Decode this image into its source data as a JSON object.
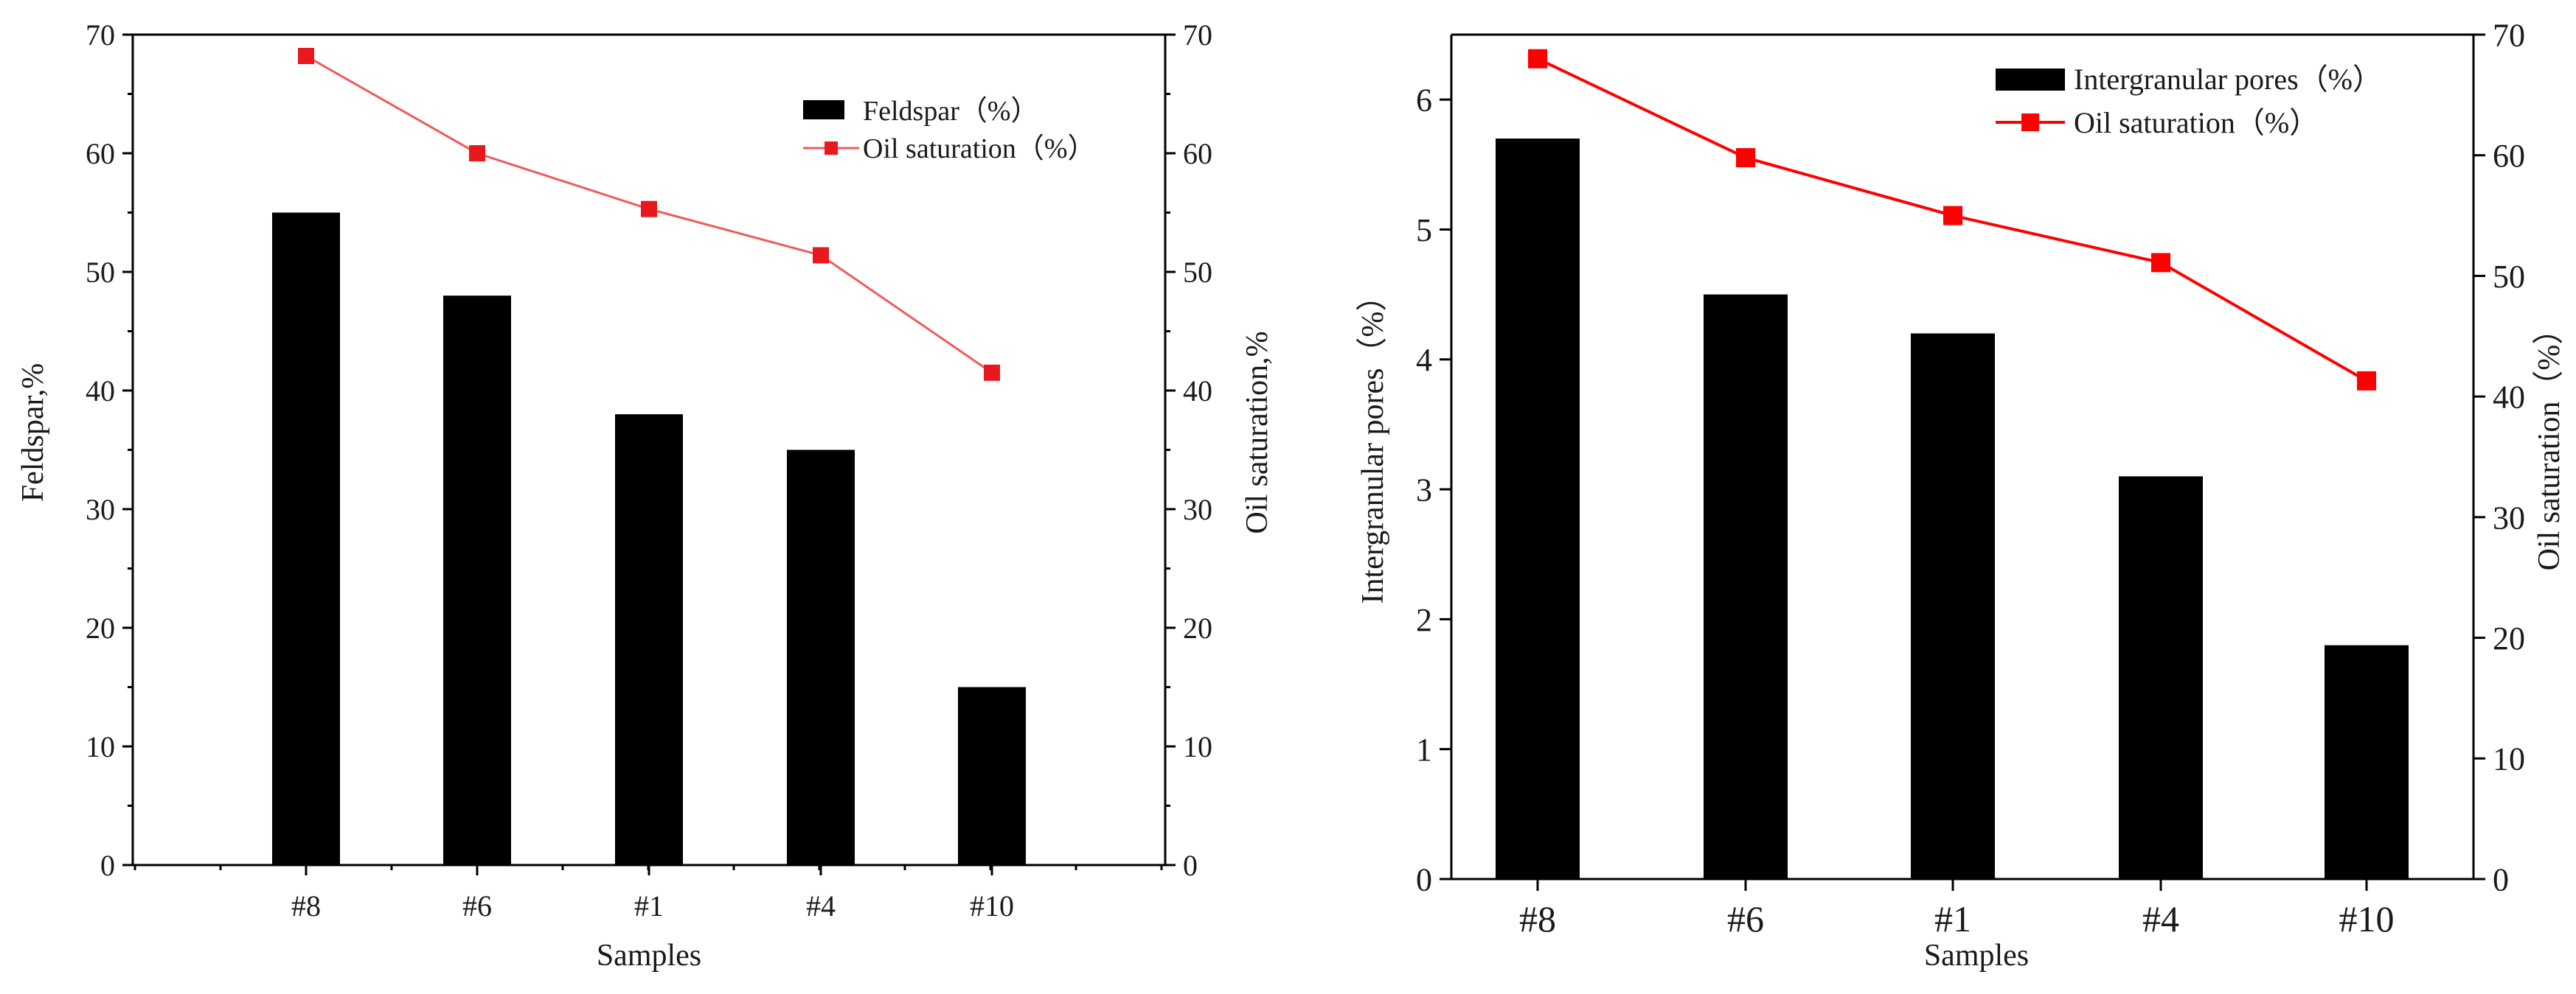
{
  "colors": {
    "bar": "#000000",
    "line_left": "#f05a5a",
    "marker_left": "#e8181c",
    "line_right": "#ff0000",
    "marker_right": "#ff0000",
    "axis": "#000000"
  },
  "chart_data": [
    {
      "type": "bar+line",
      "title": "",
      "xlabel": "Samples",
      "ylabel": "Feldspar,%",
      "y2label": "Oil saturation,%",
      "categories": [
        "#8",
        "#6",
        "#1",
        "#4",
        "#10"
      ],
      "ylim": [
        0,
        70
      ],
      "y2lim": [
        0,
        70
      ],
      "yticks": [
        0,
        10,
        20,
        30,
        40,
        50,
        60,
        70
      ],
      "y2ticks": [
        0,
        10,
        20,
        30,
        40,
        50,
        60,
        70
      ],
      "grid": false,
      "legend_position": "top-right",
      "series": [
        {
          "name": "Feldspar（%）",
          "kind": "bar",
          "axis": "left",
          "values": [
            55,
            48,
            38,
            35,
            15
          ]
        },
        {
          "name": "Oil saturation（%）",
          "kind": "line",
          "axis": "right",
          "values": [
            68.2,
            60,
            55.3,
            51.4,
            41.5
          ]
        }
      ]
    },
    {
      "type": "bar+line",
      "title": "",
      "xlabel": "Samples",
      "ylabel": "Intergranular pores（%）",
      "y2label": "Oil saturation（%）",
      "categories": [
        "#8",
        "#6",
        "#1",
        "#4",
        "#10"
      ],
      "ylim": [
        0,
        6.5
      ],
      "y2lim": [
        0,
        70
      ],
      "yticks": [
        0,
        1,
        2,
        3,
        4,
        5,
        6
      ],
      "y2ticks": [
        0,
        10,
        20,
        30,
        40,
        50,
        60,
        70
      ],
      "grid": false,
      "legend_position": "top-right",
      "series": [
        {
          "name": "Intergranular pores（%）",
          "kind": "bar",
          "axis": "left",
          "values": [
            5.7,
            4.5,
            4.2,
            3.1,
            1.8
          ]
        },
        {
          "name": "Oil saturation（%）",
          "kind": "line",
          "axis": "right",
          "values": [
            68,
            59.8,
            55,
            51.1,
            41.3
          ]
        }
      ]
    }
  ]
}
